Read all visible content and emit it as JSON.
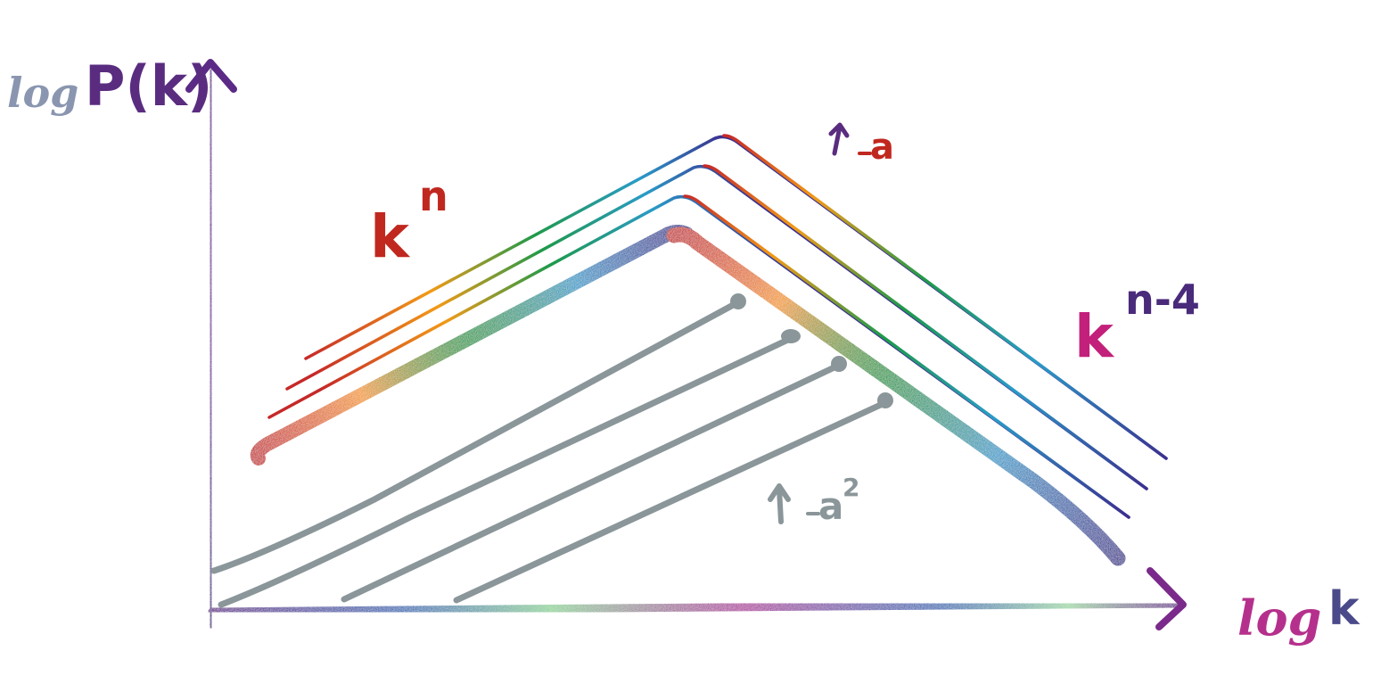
{
  "diagram": {
    "y_axis_label": {
      "prefix": "log",
      "main": "P(k)"
    },
    "x_axis_label": {
      "prefix": "log",
      "main": "k"
    },
    "rising_slope_label": {
      "base": "k",
      "exponent": "n"
    },
    "falling_slope_label": {
      "base": "k",
      "exponent": "n-4"
    },
    "peak_arrow_label": "a",
    "growth_arrow_label": {
      "base": "a",
      "exponent": "2"
    }
  },
  "colors": {
    "axis_purple": "#5b2a86",
    "axis_rainbow": [
      "#6a2b8f",
      "#3a6fb7",
      "#7fd2c9",
      "#8fd49a",
      "#b13aa0",
      "#6a2b8f"
    ],
    "spectrum": [
      "#c62828",
      "#f29a16",
      "#1e9a4a",
      "#2a9bc8",
      "#3b2f8f"
    ],
    "gray_lines": "#8a9699",
    "label_red": "#c0281f",
    "label_magenta": "#c2207a",
    "label_purple": "#4a2a7a"
  }
}
